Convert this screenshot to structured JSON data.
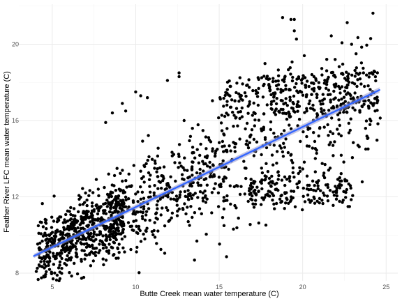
{
  "chart_data": {
    "type": "scatter",
    "title": "",
    "xlabel": "Butte Creek mean water temperature (C)",
    "ylabel": "Feather River LFC mean water temperature (C)",
    "xlim": [
      3.0,
      25.7
    ],
    "ylim": [
      7.6,
      22.1
    ],
    "x_ticks": [
      5,
      10,
      15,
      20,
      25
    ],
    "y_ticks": [
      8,
      12,
      16,
      20
    ],
    "grid": true,
    "point_color": "#000000",
    "trend_line": {
      "method": "linear",
      "color": "#3366ff",
      "band_color": "#9999cc",
      "x": [
        3.9,
        24.6
      ],
      "y": [
        8.9,
        17.6
      ]
    },
    "outliers": [
      {
        "x": 18.8,
        "y": 21.4
      },
      {
        "x": 19.3,
        "y": 21.3
      },
      {
        "x": 19.5,
        "y": 21.3
      },
      {
        "x": 19.5,
        "y": 20.7
      },
      {
        "x": 20.1,
        "y": 19.4
      },
      {
        "x": 12.6,
        "y": 18.5
      },
      {
        "x": 12.6,
        "y": 18.3
      },
      {
        "x": 11.9,
        "y": 18.1
      },
      {
        "x": 10.0,
        "y": 17.5
      },
      {
        "x": 10.3,
        "y": 17.3
      },
      {
        "x": 10.7,
        "y": 17.2
      },
      {
        "x": 9.4,
        "y": 16.5
      },
      {
        "x": 9.2,
        "y": 16.9
      },
      {
        "x": 8.6,
        "y": 16.4
      },
      {
        "x": 8.2,
        "y": 15.9
      },
      {
        "x": 12.9,
        "y": 16.0
      }
    ]
  }
}
